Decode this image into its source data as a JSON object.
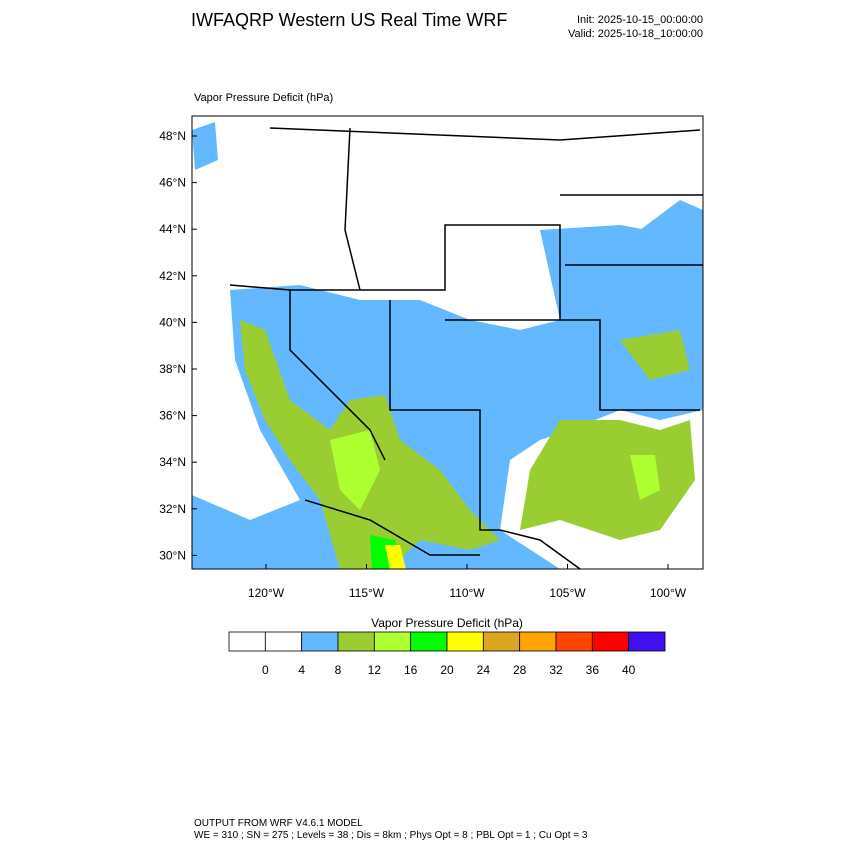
{
  "header": {
    "title": "IWFAQRP Western US Real Time WRF",
    "init": "Init: 2025-10-15_00:00:00",
    "valid": "Valid: 2025-10-18_10:00:00"
  },
  "map": {
    "subtitle": "Vapor Pressure Deficit   (hPa)",
    "lat_labels": [
      "48°N",
      "46°N",
      "44°N",
      "42°N",
      "40°N",
      "38°N",
      "36°N",
      "34°N",
      "32°N",
      "30°N"
    ],
    "lon_labels": [
      "120°W",
      "115°W",
      "110°W",
      "105°W",
      "100°W"
    ]
  },
  "colorbar": {
    "title": "Vapor Pressure Deficit  (hPa)",
    "colors": [
      "#ffffff",
      "#ffffff",
      "#63b8ff",
      "#9acd32",
      "#adff2f",
      "#00ff00",
      "#ffff00",
      "#daa520",
      "#ffa500",
      "#ff4500",
      "#ff0000",
      "#4010f0"
    ],
    "labels": [
      "0",
      "4",
      "8",
      "12",
      "16",
      "20",
      "24",
      "28",
      "32",
      "36",
      "40"
    ]
  },
  "footer": {
    "line1": "OUTPUT FROM WRF V4.6.1 MODEL",
    "line2": "WE = 310 ; SN = 275 ; Levels = 38 ; Dis = 8km ; Phys Opt = 8 ; PBL Opt = 1 ; Cu Opt = 3"
  }
}
